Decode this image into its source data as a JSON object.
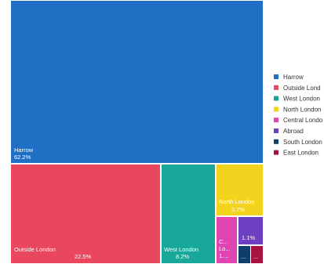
{
  "chart_data": {
    "type": "treemap",
    "title": "",
    "items": [
      {
        "name": "Harrow",
        "label": "Harrow",
        "value_label": "62.2%",
        "value": 62.2,
        "color": "#1F6FC5"
      },
      {
        "name": "Outside London",
        "label": "Outside London",
        "value_label": "22.5%",
        "value": 22.5,
        "color": "#E8475E"
      },
      {
        "name": "West London",
        "label": "West London",
        "value_label": "8.2%",
        "value": 8.2,
        "color": "#17A89A"
      },
      {
        "name": "North London",
        "label": "North London",
        "value_label": "3.7%",
        "value": 3.7,
        "color": "#F4D31F"
      },
      {
        "name": "Central London",
        "label": "C...",
        "value_label": "",
        "value": 1.6,
        "color": "#DF44B0"
      },
      {
        "name": "Abroad",
        "label": "",
        "value_label": "1.1%",
        "value": 1.1,
        "color": "#6D3FC1"
      },
      {
        "name": "South London",
        "label": "...",
        "value_label": "",
        "value": 0.4,
        "color": "#0E3F6B"
      },
      {
        "name": "East London",
        "label": "...",
        "value_label": "",
        "value": 0.3,
        "color": "#A8123E"
      }
    ],
    "central_extra_lines": [
      "Lo...",
      "1...."
    ],
    "legend": {
      "position": "right",
      "entries": [
        {
          "label": "Harrow",
          "color": "#1F6FC5"
        },
        {
          "label": "Outside Lond",
          "color": "#E8475E"
        },
        {
          "label": "West London",
          "color": "#17A89A"
        },
        {
          "label": "North London",
          "color": "#F4D31F"
        },
        {
          "label": "Central Londo",
          "color": "#DF44B0"
        },
        {
          "label": "Abroad",
          "color": "#6D3FC1"
        },
        {
          "label": "South London",
          "color": "#0E3F6B"
        },
        {
          "label": "East London",
          "color": "#A8123E"
        }
      ]
    }
  }
}
